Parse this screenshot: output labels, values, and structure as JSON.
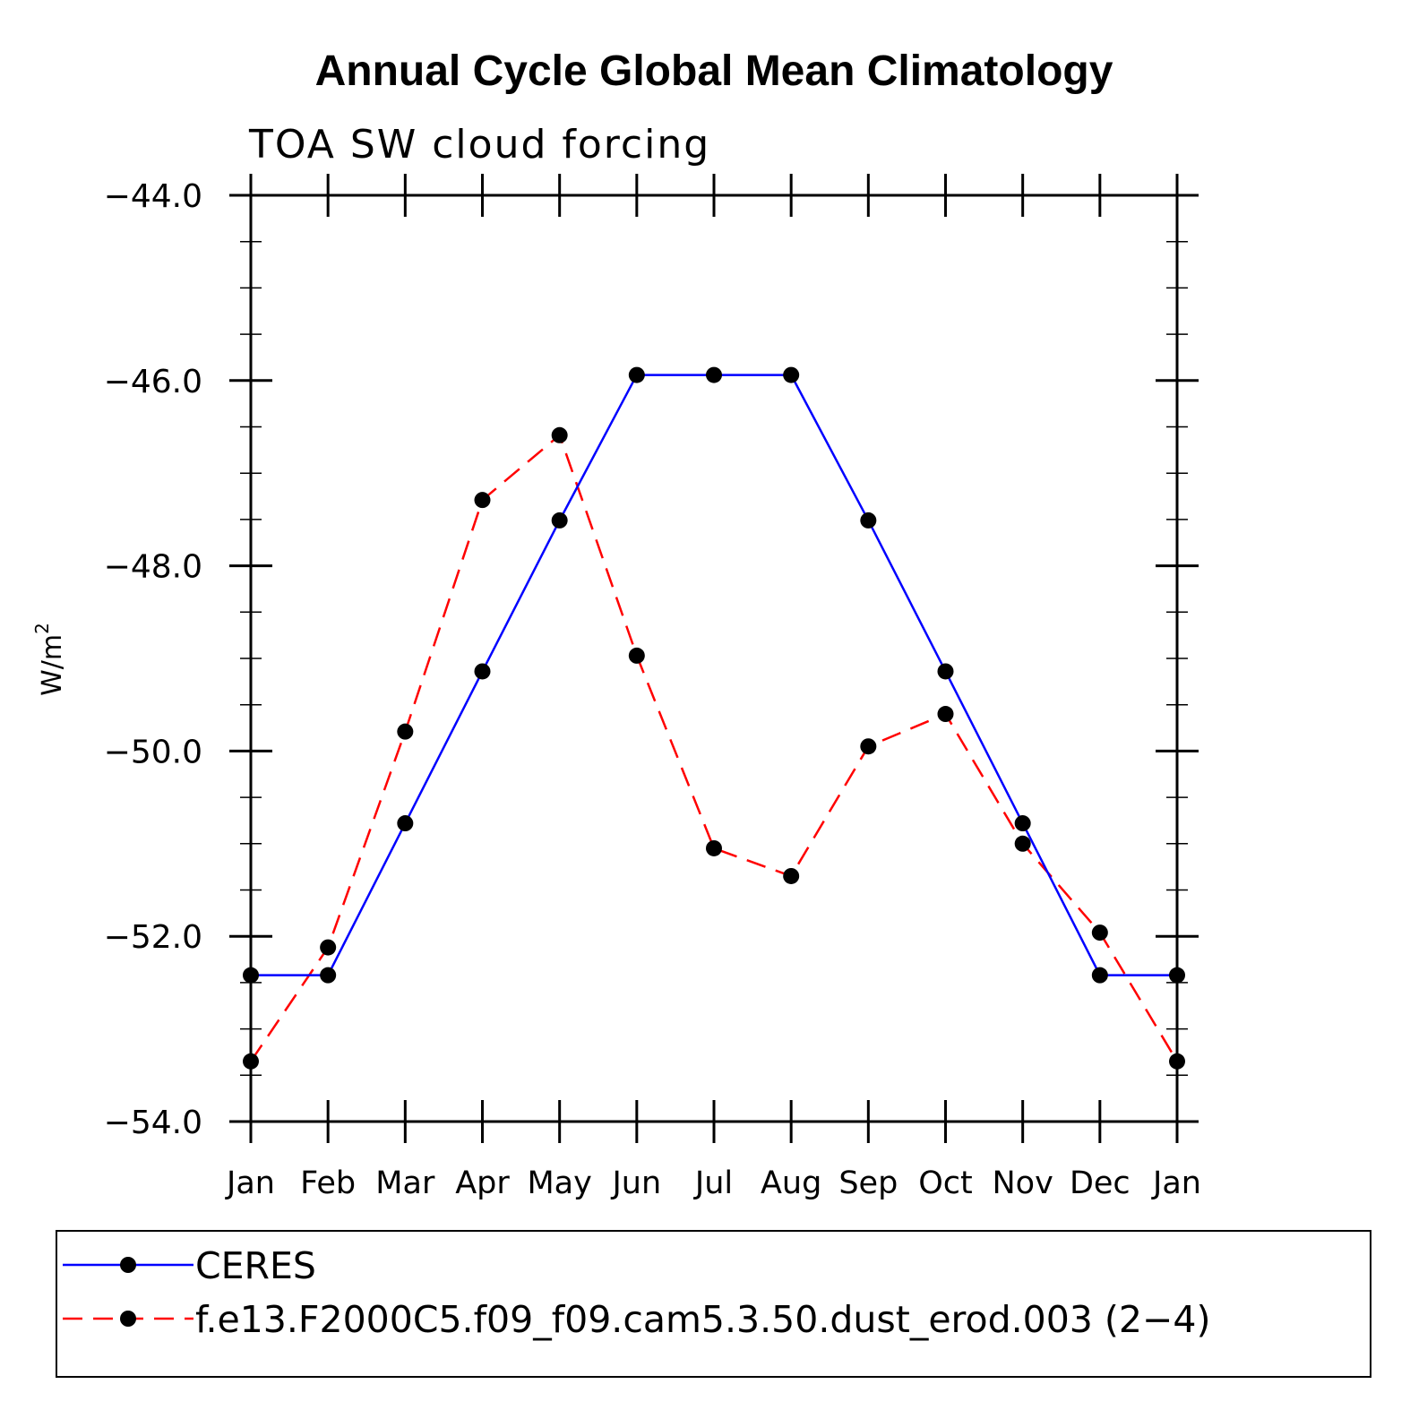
{
  "chart_data": {
    "type": "line",
    "title": "Annual Cycle Global Mean Climatology",
    "subtitle": "TOA SW cloud forcing",
    "ylabel": "W/m",
    "ylabel_sup": "2",
    "xlabel": "",
    "ylim": [
      -54.0,
      -44.0
    ],
    "yticks": [
      -54.0,
      -52.0,
      -50.0,
      -48.0,
      -46.0,
      -44.0
    ],
    "ytick_labels": [
      "−54.0",
      "−52.0",
      "−50.0",
      "−48.0",
      "−46.0",
      "−44.0"
    ],
    "categories": [
      "Jan",
      "Feb",
      "Mar",
      "Apr",
      "May",
      "Jun",
      "Jul",
      "Aug",
      "Sep",
      "Oct",
      "Nov",
      "Dec",
      "Jan"
    ],
    "series": [
      {
        "name": "CERES",
        "color": "#0000ff",
        "dash": "solid",
        "marker": "dot",
        "values": [
          -52.42,
          -52.42,
          -50.78,
          -49.14,
          -47.51,
          -45.94,
          -45.94,
          -45.94,
          -47.51,
          -49.14,
          -50.78,
          -52.42,
          -52.42
        ]
      },
      {
        "name": "f.e13.F2000C5.f09_f09.cam5.3.50.dust_erod.003 (2−4)",
        "color": "#ff0000",
        "dash": "dashed",
        "marker": "dot",
        "values": [
          -53.35,
          -52.12,
          -49.79,
          -47.29,
          -46.59,
          -48.97,
          -51.05,
          -51.35,
          -49.95,
          -49.6,
          -51.0,
          -51.96,
          -53.35
        ]
      }
    ],
    "legend_position": "bottom",
    "grid": false
  }
}
